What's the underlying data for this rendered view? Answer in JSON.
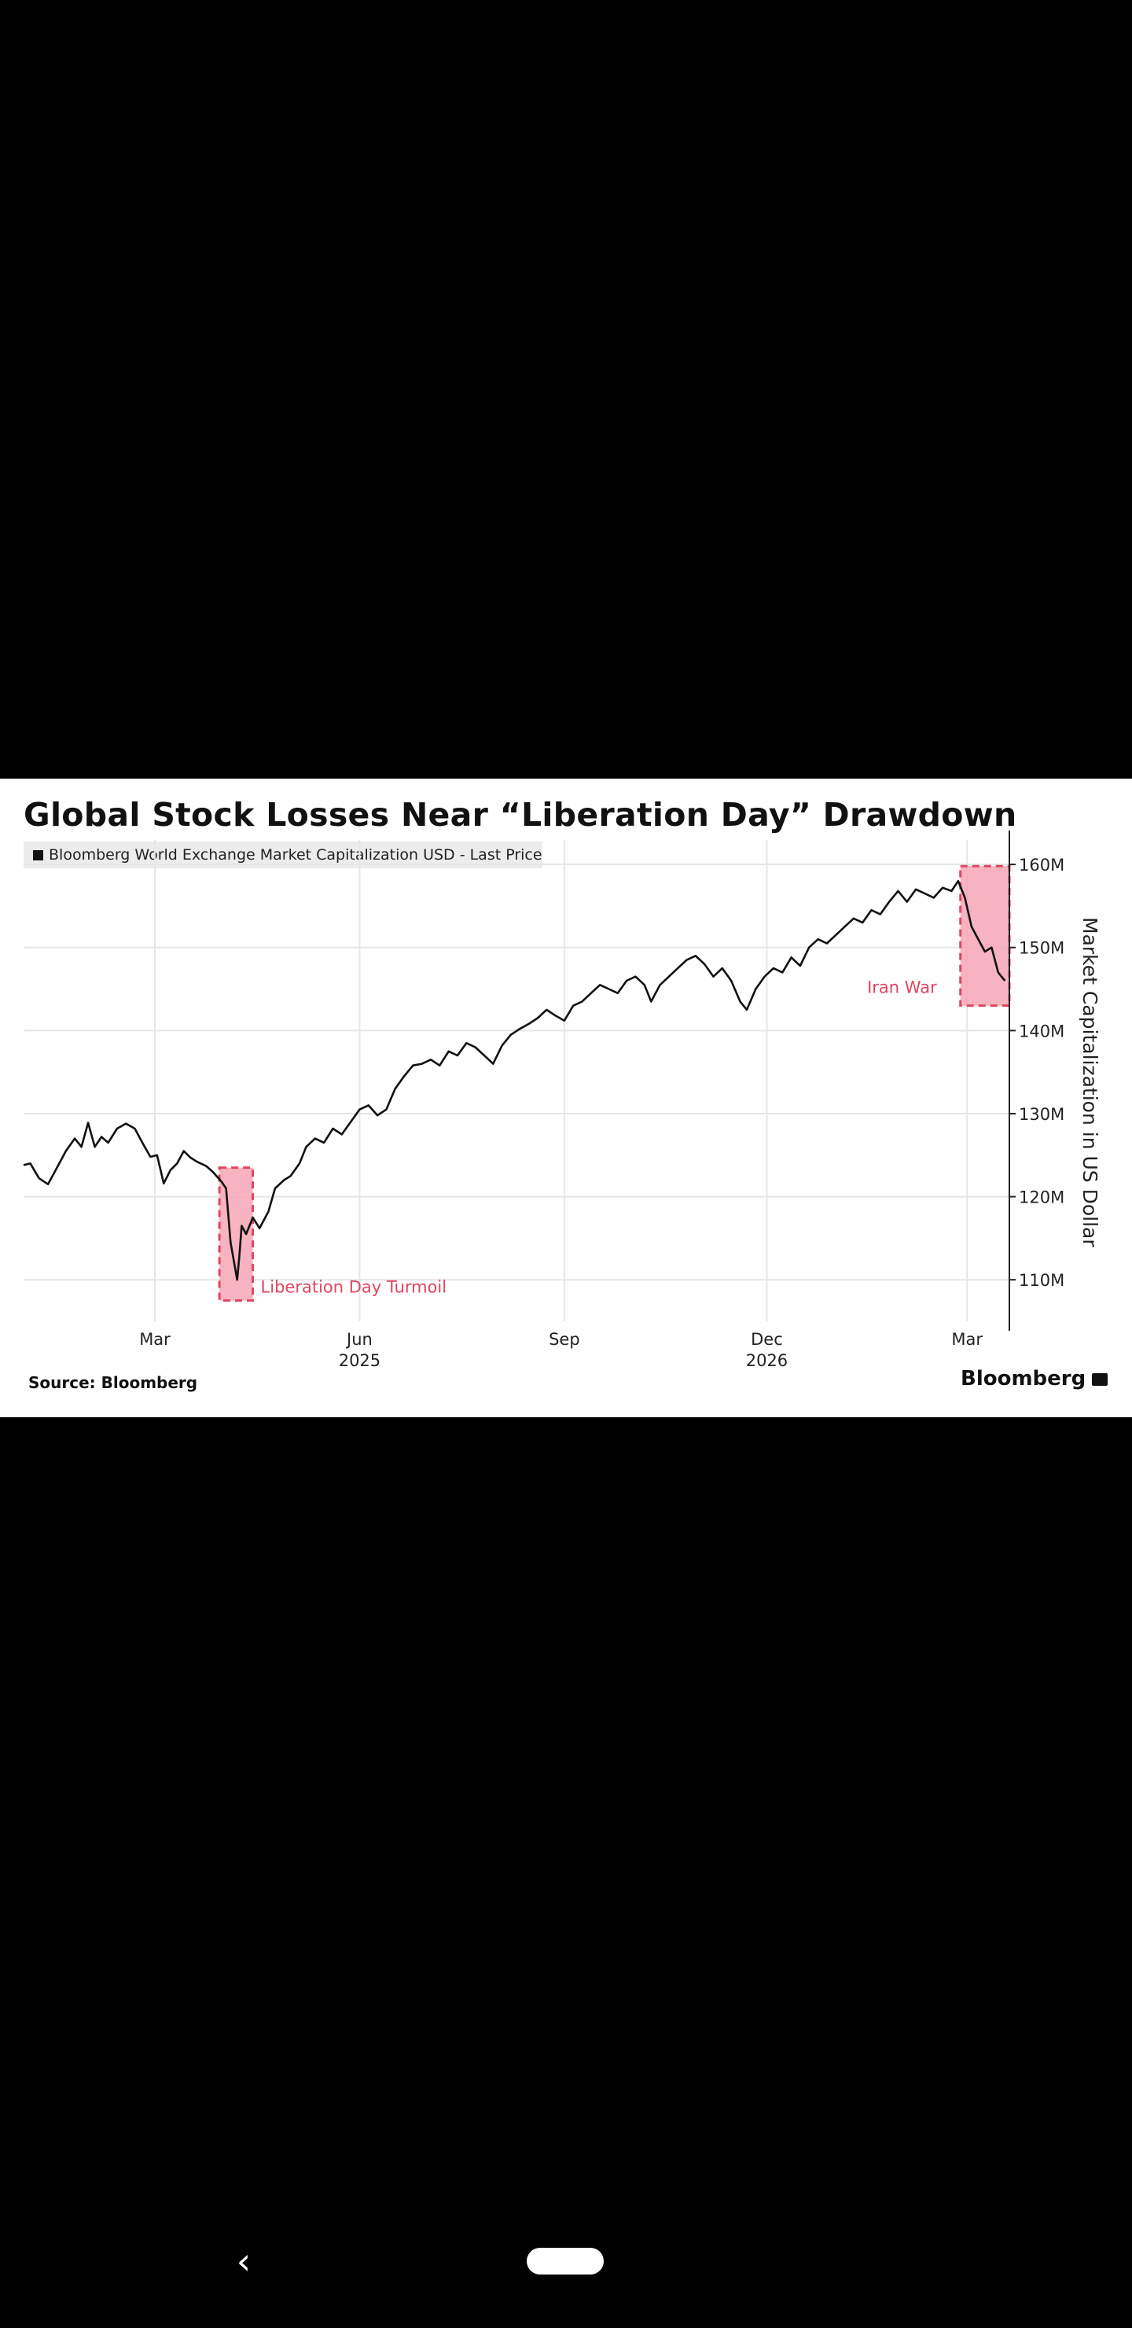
{
  "chart_data": {
    "type": "line",
    "title": "Global Stock Losses Near “Liberation Day” Drawdown",
    "legend": "Bloomberg World Exchange Market Capitalization USD - Last Price",
    "ylabel": "Market Capitalization in US Dollar",
    "ylim": [
      105,
      162
    ],
    "yticks": [
      110,
      120,
      130,
      140,
      150,
      160
    ],
    "ytick_labels": [
      "110M",
      "120M",
      "130M",
      "140M",
      "150M",
      "160M"
    ],
    "x_range": [
      "2025-01-01",
      "2026-03-20"
    ],
    "xticks": [
      {
        "date": "2025-03-01",
        "label": "Mar",
        "sub": ""
      },
      {
        "date": "2025-06-01",
        "label": "Jun",
        "sub": "2025"
      },
      {
        "date": "2025-09-01",
        "label": "Sep",
        "sub": ""
      },
      {
        "date": "2025-12-01",
        "label": "Dec",
        "sub": "2026"
      },
      {
        "date": "2026-03-01",
        "label": "Mar",
        "sub": ""
      }
    ],
    "grid": true,
    "legend_position": "top-left",
    "series": [
      {
        "color": "#111111",
        "points": [
          [
            "2025-01-01",
            123.8
          ],
          [
            "2025-01-04",
            124.0
          ],
          [
            "2025-01-08",
            122.2
          ],
          [
            "2025-01-12",
            121.5
          ],
          [
            "2025-01-16",
            123.5
          ],
          [
            "2025-01-20",
            125.5
          ],
          [
            "2025-01-24",
            127.0
          ],
          [
            "2025-01-27",
            126.0
          ],
          [
            "2025-01-30",
            128.9
          ],
          [
            "2025-02-02",
            126.0
          ],
          [
            "2025-02-05",
            127.2
          ],
          [
            "2025-02-08",
            126.5
          ],
          [
            "2025-02-12",
            128.2
          ],
          [
            "2025-02-16",
            128.8
          ],
          [
            "2025-02-20",
            128.2
          ],
          [
            "2025-02-24",
            126.2
          ],
          [
            "2025-02-27",
            124.8
          ],
          [
            "2025-03-02",
            125.0
          ],
          [
            "2025-03-05",
            121.6
          ],
          [
            "2025-03-08",
            123.2
          ],
          [
            "2025-03-11",
            124.0
          ],
          [
            "2025-03-14",
            125.5
          ],
          [
            "2025-03-17",
            124.7
          ],
          [
            "2025-03-20",
            124.2
          ],
          [
            "2025-03-24",
            123.7
          ],
          [
            "2025-03-27",
            123.0
          ],
          [
            "2025-03-31",
            121.8
          ],
          [
            "2025-04-02",
            121.0
          ],
          [
            "2025-04-04",
            114.5
          ],
          [
            "2025-04-07",
            110.0
          ],
          [
            "2025-04-08",
            113.0
          ],
          [
            "2025-04-09",
            116.5
          ],
          [
            "2025-04-11",
            115.5
          ],
          [
            "2025-04-14",
            117.5
          ],
          [
            "2025-04-17",
            116.2
          ],
          [
            "2025-04-21",
            118.2
          ],
          [
            "2025-04-24",
            121.0
          ],
          [
            "2025-04-28",
            122.0
          ],
          [
            "2025-05-01",
            122.5
          ],
          [
            "2025-05-05",
            124.0
          ],
          [
            "2025-05-08",
            126.0
          ],
          [
            "2025-05-12",
            127.0
          ],
          [
            "2025-05-16",
            126.5
          ],
          [
            "2025-05-20",
            128.2
          ],
          [
            "2025-05-24",
            127.5
          ],
          [
            "2025-05-28",
            129.0
          ],
          [
            "2025-06-01",
            130.5
          ],
          [
            "2025-06-05",
            131.0
          ],
          [
            "2025-06-09",
            129.8
          ],
          [
            "2025-06-13",
            130.5
          ],
          [
            "2025-06-17",
            133.0
          ],
          [
            "2025-06-21",
            134.5
          ],
          [
            "2025-06-25",
            135.8
          ],
          [
            "2025-06-29",
            136.0
          ],
          [
            "2025-07-03",
            136.5
          ],
          [
            "2025-07-07",
            135.8
          ],
          [
            "2025-07-11",
            137.5
          ],
          [
            "2025-07-15",
            137.0
          ],
          [
            "2025-07-19",
            138.5
          ],
          [
            "2025-07-23",
            138.0
          ],
          [
            "2025-07-27",
            137.0
          ],
          [
            "2025-07-31",
            136.0
          ],
          [
            "2025-08-04",
            138.2
          ],
          [
            "2025-08-08",
            139.5
          ],
          [
            "2025-08-12",
            140.2
          ],
          [
            "2025-08-16",
            140.8
          ],
          [
            "2025-08-20",
            141.5
          ],
          [
            "2025-08-24",
            142.5
          ],
          [
            "2025-08-28",
            141.8
          ],
          [
            "2025-09-01",
            141.2
          ],
          [
            "2025-09-05",
            143.0
          ],
          [
            "2025-09-09",
            143.5
          ],
          [
            "2025-09-13",
            144.5
          ],
          [
            "2025-09-17",
            145.5
          ],
          [
            "2025-09-21",
            145.0
          ],
          [
            "2025-09-25",
            144.5
          ],
          [
            "2025-09-29",
            146.0
          ],
          [
            "2025-10-03",
            146.5
          ],
          [
            "2025-10-07",
            145.5
          ],
          [
            "2025-10-10",
            143.5
          ],
          [
            "2025-10-14",
            145.5
          ],
          [
            "2025-10-18",
            146.5
          ],
          [
            "2025-10-22",
            147.5
          ],
          [
            "2025-10-26",
            148.5
          ],
          [
            "2025-10-30",
            149.0
          ],
          [
            "2025-11-03",
            148.0
          ],
          [
            "2025-11-07",
            146.5
          ],
          [
            "2025-11-11",
            147.5
          ],
          [
            "2025-11-15",
            146.0
          ],
          [
            "2025-11-19",
            143.5
          ],
          [
            "2025-11-22",
            142.5
          ],
          [
            "2025-11-26",
            145.0
          ],
          [
            "2025-11-30",
            146.5
          ],
          [
            "2025-12-04",
            147.5
          ],
          [
            "2025-12-08",
            147.0
          ],
          [
            "2025-12-12",
            148.8
          ],
          [
            "2025-12-16",
            147.8
          ],
          [
            "2025-12-20",
            150.0
          ],
          [
            "2025-12-24",
            151.0
          ],
          [
            "2025-12-28",
            150.5
          ],
          [
            "2026-01-01",
            151.5
          ],
          [
            "2026-01-05",
            152.5
          ],
          [
            "2026-01-09",
            153.5
          ],
          [
            "2026-01-13",
            153.0
          ],
          [
            "2026-01-17",
            154.5
          ],
          [
            "2026-01-21",
            154.0
          ],
          [
            "2026-01-25",
            155.5
          ],
          [
            "2026-01-29",
            156.8
          ],
          [
            "2026-02-02",
            155.5
          ],
          [
            "2026-02-06",
            157.0
          ],
          [
            "2026-02-10",
            156.5
          ],
          [
            "2026-02-14",
            156.0
          ],
          [
            "2026-02-18",
            157.2
          ],
          [
            "2026-02-22",
            156.8
          ],
          [
            "2026-02-25",
            158.0
          ],
          [
            "2026-02-28",
            156.0
          ],
          [
            "2026-03-03",
            152.5
          ],
          [
            "2026-03-06",
            151.0
          ],
          [
            "2026-03-09",
            149.5
          ],
          [
            "2026-03-12",
            150.0
          ],
          [
            "2026-03-15",
            147.0
          ],
          [
            "2026-03-18",
            146.0
          ]
        ]
      }
    ],
    "annotations": [
      {
        "label": "Liberation Day Turmoil",
        "x0": "2025-03-30",
        "x1": "2025-04-14",
        "y0": 107.5,
        "y1": 123.5
      },
      {
        "label": "Iran War",
        "x0": "2026-02-26",
        "x1": "2026-03-20",
        "y0": 143.0,
        "y1": 159.8
      }
    ]
  },
  "footer": {
    "source": "Source: Bloomberg",
    "brand": "Bloomberg"
  },
  "colors": {
    "line": "#111111",
    "annotation": "#e0455f",
    "annotation_fill": "#f6a6b4",
    "grid": "#e6e6e6"
  }
}
